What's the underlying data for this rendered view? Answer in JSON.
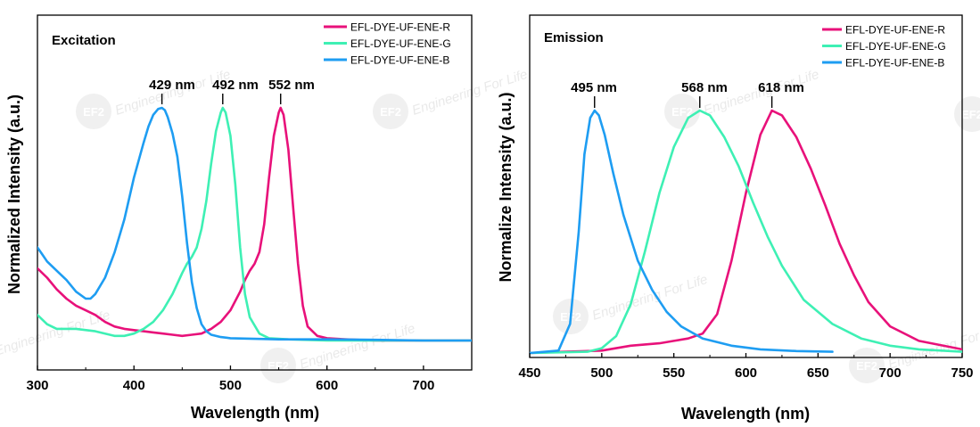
{
  "chart_data": [
    {
      "type": "line",
      "title": "Excitation",
      "xlabel": "Wavelength (nm)",
      "ylabel": "Normalized Intensity (a.u.)",
      "xlim": [
        300,
        750
      ],
      "ylim": [
        0,
        1.12
      ],
      "xticks": [
        300,
        400,
        500,
        600,
        700
      ],
      "xtick_labels": [
        "300",
        "400",
        "500",
        "600",
        "700"
      ],
      "grid": false,
      "legend_position": "top-right",
      "series": [
        {
          "name": "EFL-DYE-UF-ENE-R",
          "color": "#e8117a",
          "x": [
            300,
            310,
            320,
            330,
            340,
            350,
            360,
            370,
            380,
            390,
            400,
            410,
            420,
            430,
            440,
            450,
            460,
            470,
            480,
            490,
            500,
            510,
            515,
            520,
            525,
            530,
            535,
            540,
            545,
            550,
            552,
            555,
            560,
            565,
            570,
            575,
            580,
            590,
            600,
            620,
            650,
            700,
            750
          ],
          "y": [
            0.31,
            0.27,
            0.22,
            0.18,
            0.15,
            0.13,
            0.11,
            0.08,
            0.06,
            0.05,
            0.045,
            0.04,
            0.035,
            0.03,
            0.025,
            0.02,
            0.025,
            0.03,
            0.05,
            0.08,
            0.13,
            0.21,
            0.26,
            0.3,
            0.33,
            0.38,
            0.5,
            0.7,
            0.88,
            0.98,
            1.0,
            0.97,
            0.82,
            0.57,
            0.33,
            0.15,
            0.06,
            0.02,
            0.01,
            0.005,
            0.0,
            0.0,
            0.0
          ]
        },
        {
          "name": "EFL-DYE-UF-ENE-G",
          "color": "#3ef0b4",
          "x": [
            300,
            310,
            320,
            340,
            360,
            380,
            390,
            400,
            410,
            420,
            430,
            440,
            450,
            455,
            460,
            465,
            470,
            475,
            480,
            485,
            490,
            492,
            495,
            500,
            505,
            510,
            515,
            520,
            530,
            540,
            560,
            600,
            650,
            700,
            750
          ],
          "y": [
            0.11,
            0.07,
            0.05,
            0.05,
            0.04,
            0.02,
            0.02,
            0.03,
            0.05,
            0.08,
            0.13,
            0.2,
            0.29,
            0.33,
            0.36,
            0.4,
            0.48,
            0.6,
            0.76,
            0.9,
            0.98,
            1.0,
            0.98,
            0.88,
            0.67,
            0.4,
            0.2,
            0.1,
            0.03,
            0.01,
            0.005,
            0.0,
            0.0,
            0.0,
            0.0
          ]
        },
        {
          "name": "EFL-DYE-UF-ENE-B",
          "color": "#1e9df2",
          "x": [
            300,
            305,
            310,
            320,
            330,
            340,
            350,
            355,
            360,
            370,
            380,
            390,
            400,
            410,
            415,
            420,
            425,
            429,
            432,
            435,
            440,
            445,
            450,
            455,
            460,
            465,
            470,
            475,
            480,
            490,
            500,
            550,
            600,
            650,
            700,
            750
          ],
          "y": [
            0.4,
            0.37,
            0.34,
            0.3,
            0.26,
            0.21,
            0.18,
            0.18,
            0.2,
            0.27,
            0.38,
            0.52,
            0.7,
            0.85,
            0.92,
            0.97,
            0.995,
            1.0,
            0.99,
            0.96,
            0.89,
            0.79,
            0.62,
            0.42,
            0.25,
            0.14,
            0.07,
            0.04,
            0.025,
            0.015,
            0.01,
            0.005,
            0.005,
            0.003,
            0.0,
            0.0
          ]
        }
      ],
      "annotations": [
        {
          "text": "429 nm",
          "x": 429
        },
        {
          "text": "492 nm",
          "x": 492
        },
        {
          "text": "552 nm",
          "x": 552
        }
      ]
    },
    {
      "type": "line",
      "title": "Emission",
      "xlabel": "Wavelength (nm)",
      "ylabel": "Normalize Intensity (a.u.)",
      "xlim": [
        450,
        750
      ],
      "ylim": [
        0,
        1.12
      ],
      "xticks": [
        450,
        500,
        550,
        600,
        650,
        700,
        750
      ],
      "xtick_labels": [
        "450",
        "500",
        "550",
        "600",
        "650",
        "700",
        "750"
      ],
      "grid": false,
      "legend_position": "top-right",
      "series": [
        {
          "name": "EFL-DYE-UF-ENE-R",
          "color": "#e8117a",
          "x": [
            450,
            475,
            500,
            520,
            540,
            550,
            560,
            570,
            580,
            590,
            600,
            610,
            618,
            625,
            635,
            645,
            655,
            665,
            675,
            685,
            700,
            720,
            750
          ],
          "y": [
            0.0,
            0.005,
            0.01,
            0.03,
            0.04,
            0.05,
            0.06,
            0.08,
            0.16,
            0.38,
            0.66,
            0.9,
            1.0,
            0.98,
            0.89,
            0.76,
            0.61,
            0.45,
            0.32,
            0.21,
            0.11,
            0.05,
            0.015
          ]
        },
        {
          "name": "EFL-DYE-UF-ENE-G",
          "color": "#3ef0b4",
          "x": [
            450,
            490,
            500,
            510,
            520,
            530,
            540,
            550,
            560,
            568,
            575,
            585,
            595,
            605,
            615,
            625,
            640,
            660,
            680,
            700,
            720,
            750
          ],
          "y": [
            0.0,
            0.005,
            0.02,
            0.07,
            0.2,
            0.42,
            0.66,
            0.85,
            0.97,
            1.0,
            0.98,
            0.89,
            0.77,
            0.62,
            0.48,
            0.36,
            0.22,
            0.12,
            0.06,
            0.03,
            0.015,
            0.005
          ]
        },
        {
          "name": "EFL-DYE-UF-ENE-B",
          "color": "#1e9df2",
          "x": [
            450,
            470,
            478,
            484,
            488,
            492,
            495,
            498,
            502,
            508,
            515,
            525,
            535,
            545,
            555,
            570,
            590,
            610,
            635,
            660
          ],
          "y": [
            0.0,
            0.01,
            0.12,
            0.5,
            0.82,
            0.97,
            1.0,
            0.98,
            0.9,
            0.74,
            0.57,
            0.38,
            0.26,
            0.17,
            0.11,
            0.06,
            0.03,
            0.015,
            0.008,
            0.005
          ]
        }
      ],
      "annotations": [
        {
          "text": "495 nm",
          "x": 495
        },
        {
          "text": "568 nm",
          "x": 568
        },
        {
          "text": "618 nm",
          "x": 618
        }
      ]
    }
  ],
  "watermark": {
    "logo_text": "EF2",
    "text": "Engineering For Life"
  }
}
